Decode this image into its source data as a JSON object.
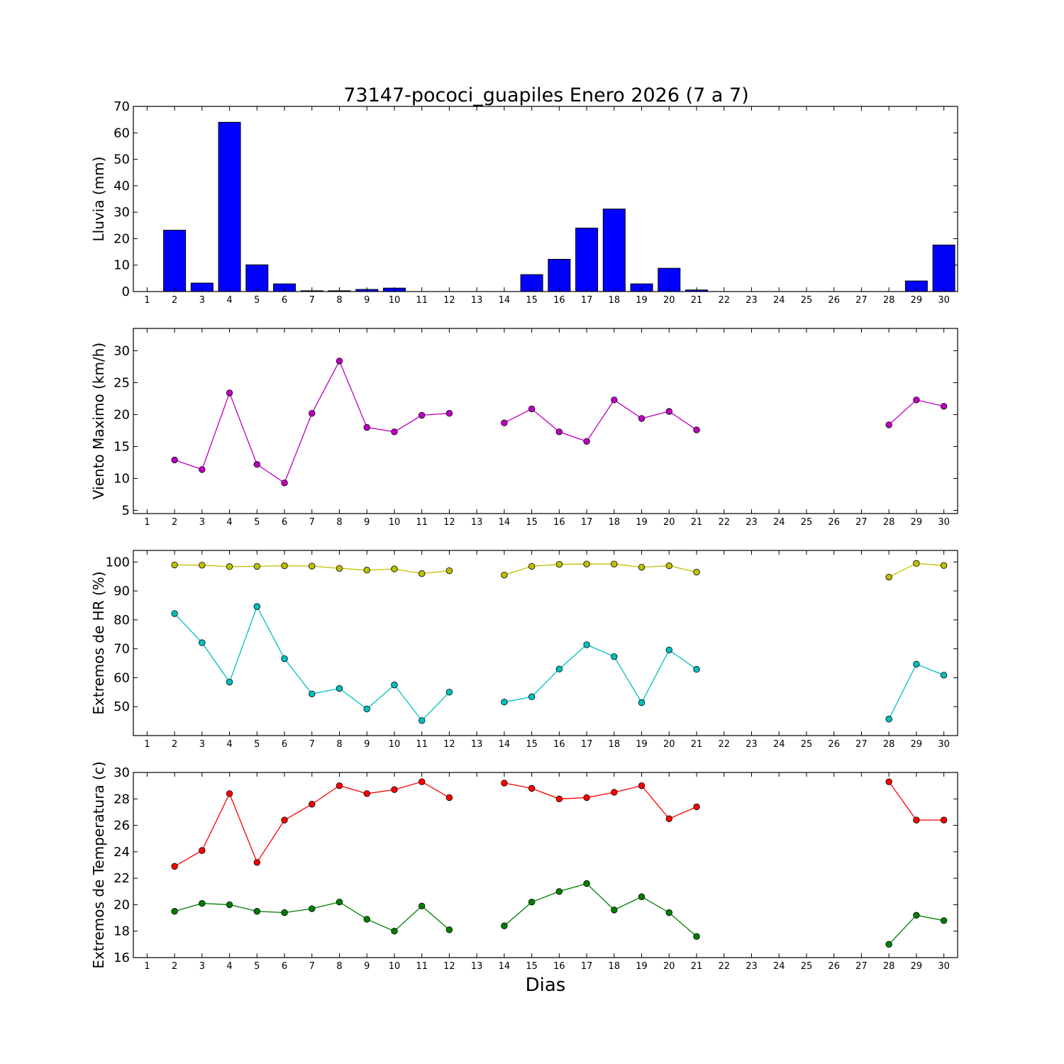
{
  "chart_data": {
    "title": "73147-pococi_guapiles Enero 2026  (7 a 7)",
    "xlabel": "Dias",
    "days": [
      1,
      2,
      3,
      4,
      5,
      6,
      7,
      8,
      9,
      10,
      11,
      12,
      13,
      14,
      15,
      16,
      17,
      18,
      19,
      20,
      21,
      22,
      23,
      24,
      25,
      26,
      27,
      28,
      29,
      30
    ],
    "panels": [
      {
        "id": "lluvia",
        "type": "bar",
        "ylabel": "Lluvia (mm)",
        "ylim": [
          0,
          70
        ],
        "yticks": [
          0,
          10,
          20,
          30,
          40,
          50,
          60,
          70
        ],
        "series": [
          {
            "color": "#0000ff",
            "values": [
              0,
              23.2,
              3.2,
              64,
              10.1,
              2.9,
              0.3,
              0.3,
              0.8,
              1.3,
              0,
              0,
              0,
              0,
              6.4,
              12.2,
              24,
              31.2,
              2.9,
              8.8,
              0.6,
              0,
              0,
              0,
              0,
              0,
              0,
              0,
              4,
              17.6
            ]
          }
        ]
      },
      {
        "id": "viento",
        "type": "line",
        "ylabel": "Viento Maximo (km/h)",
        "ylim": [
          4.5,
          33.5
        ],
        "yticks": [
          5,
          10,
          15,
          20,
          25,
          30
        ],
        "series": [
          {
            "color": "#bf00bf",
            "values": [
              null,
              12.9,
              11.4,
              23.4,
              12.2,
              9.3,
              20.2,
              28.4,
              18,
              17.3,
              19.9,
              20.2,
              null,
              18.7,
              20.9,
              17.3,
              15.8,
              22.3,
              19.4,
              20.5,
              17.6,
              null,
              null,
              null,
              null,
              null,
              null,
              18.4,
              22.3,
              21.3
            ]
          }
        ]
      },
      {
        "id": "hr",
        "type": "line",
        "ylabel": "Extremos de HR (%)",
        "ylim": [
          40,
          104
        ],
        "yticks": [
          50,
          60,
          70,
          80,
          90,
          100
        ],
        "series": [
          {
            "color": "#bfbf00",
            "values": [
              null,
              99,
              98.9,
              98.4,
              98.5,
              98.7,
              98.6,
              97.8,
              97.2,
              97.6,
              96,
              97,
              null,
              95.5,
              98.5,
              99.2,
              99.3,
              99.3,
              98.2,
              98.7,
              96.5,
              null,
              null,
              null,
              null,
              null,
              null,
              94.8,
              99.5,
              98.8
            ]
          },
          {
            "color": "#00bfbf",
            "values": [
              null,
              82.2,
              72.1,
              58.5,
              84.6,
              66.6,
              54.4,
              56.3,
              49.2,
              57.5,
              45.2,
              55,
              null,
              51.6,
              53.4,
              63,
              71.4,
              67.3,
              51.4,
              69.6,
              62.9,
              null,
              null,
              null,
              null,
              null,
              null,
              45.7,
              64.7,
              60.9
            ]
          }
        ]
      },
      {
        "id": "temp",
        "type": "line",
        "ylabel": "Extremos de Temperatura (c)",
        "ylim": [
          16,
          30
        ],
        "yticks": [
          16,
          18,
          20,
          22,
          24,
          26,
          28,
          30
        ],
        "series": [
          {
            "color": "#ff0000",
            "values": [
              null,
              22.9,
              24.1,
              28.4,
              23.2,
              26.4,
              27.6,
              29,
              28.4,
              28.7,
              29.3,
              28.1,
              null,
              29.2,
              28.8,
              28,
              28.1,
              28.5,
              29,
              26.5,
              27.4,
              null,
              null,
              null,
              null,
              null,
              null,
              29.3,
              26.4,
              26.4
            ]
          },
          {
            "color": "#007f00",
            "values": [
              null,
              19.5,
              20.1,
              20,
              19.5,
              19.4,
              19.7,
              20.2,
              18.9,
              18,
              19.9,
              18.1,
              null,
              18.4,
              20.2,
              21,
              21.6,
              19.6,
              20.6,
              19.4,
              17.6,
              null,
              null,
              null,
              null,
              null,
              null,
              17,
              19.2,
              18.8
            ]
          }
        ]
      }
    ]
  }
}
